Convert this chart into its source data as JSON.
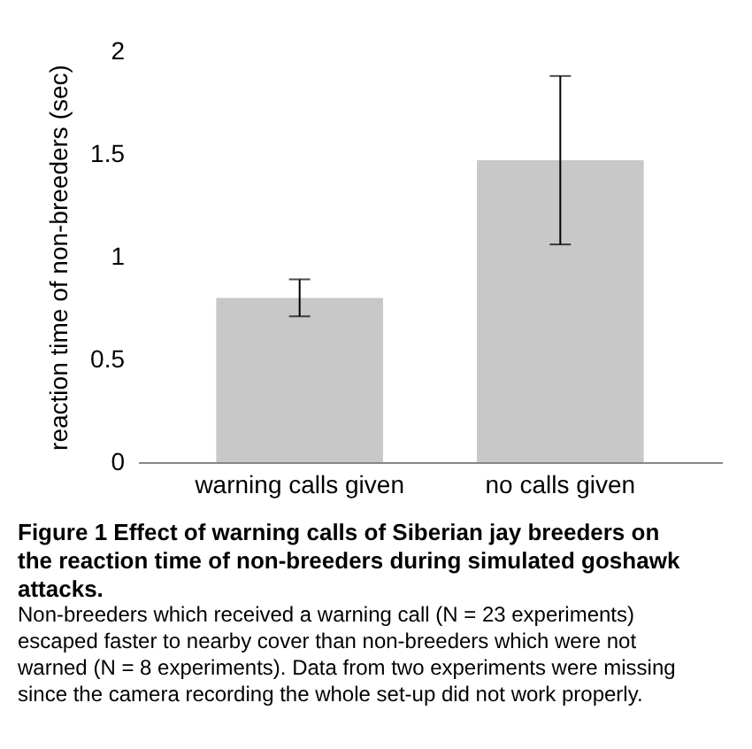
{
  "chart_data": {
    "type": "bar",
    "title": "Figure 1 Effect of warning calls of Siberian jay breeders on the reaction time of non-breeders during simulated goshawk attacks.",
    "subtitle": "Non-breeders which received a warning call (N = 23 experiments) escaped faster to nearby cover than non-breeders which were not warned (N = 8 experiments). Data from two experiments were missing since the camera recording the whole set-up did not work properly.",
    "ylabel": "reaction time of non-breeders (sec)",
    "categories": [
      "warning calls given",
      "no calls given"
    ],
    "values": [
      0.8,
      1.47
    ],
    "errors": [
      [
        0.71,
        0.89
      ],
      [
        1.06,
        1.88
      ]
    ],
    "color": "#c8c8c8",
    "ylim": [
      0,
      2
    ],
    "yticks": [
      0,
      0.5,
      1,
      1.5,
      2
    ],
    "grid": false
  }
}
